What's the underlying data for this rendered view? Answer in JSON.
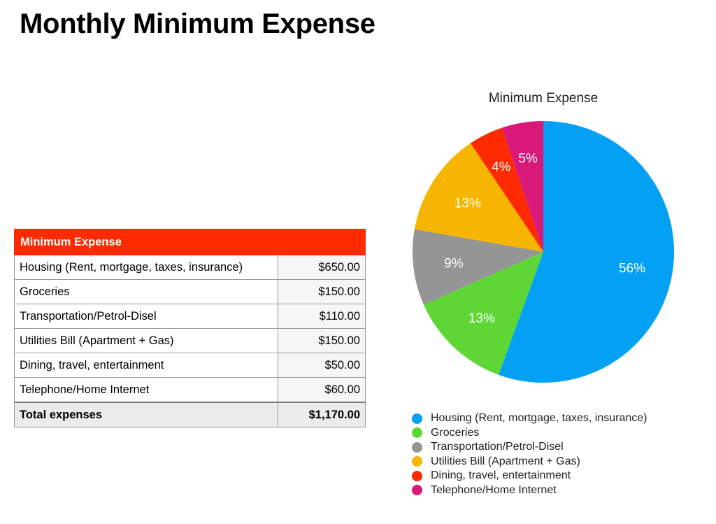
{
  "page": {
    "title": "Monthly Minimum Expense"
  },
  "table": {
    "header": "Minimum Expense",
    "rows": [
      {
        "label": "Housing (Rent, mortgage, taxes, insurance)",
        "amount": "$650.00"
      },
      {
        "label": "Groceries",
        "amount": "$150.00"
      },
      {
        "label": "Transportation/Petrol-Disel",
        "amount": "$110.00"
      },
      {
        "label": "Utilities Bill (Apartment + Gas)",
        "amount": "$150.00"
      },
      {
        "label": "Dining, travel, entertainment",
        "amount": "$50.00"
      },
      {
        "label": "Telephone/Home Internet",
        "amount": "$60.00"
      }
    ],
    "total": {
      "label": "Total expenses",
      "amount": "$1,170.00"
    },
    "header_color": "#ff2a00"
  },
  "chart_data": {
    "type": "pie",
    "title": "Minimum Expense",
    "categories": [
      "Housing (Rent, mortgage, taxes, insurance)",
      "Groceries",
      "Transportation/Petrol-Disel",
      "Utilities Bill (Apartment + Gas)",
      "Dining, travel, entertainment",
      "Telephone/Home Internet"
    ],
    "values": [
      650,
      150,
      110,
      150,
      50,
      60
    ],
    "labels": [
      "56%",
      "13%",
      "9%",
      "13%",
      "4%",
      "5%"
    ],
    "colors": [
      "#03a0f4",
      "#5ed736",
      "#959595",
      "#f6b500",
      "#ff2a00",
      "#d8197a"
    ],
    "legend_position": "bottom"
  }
}
